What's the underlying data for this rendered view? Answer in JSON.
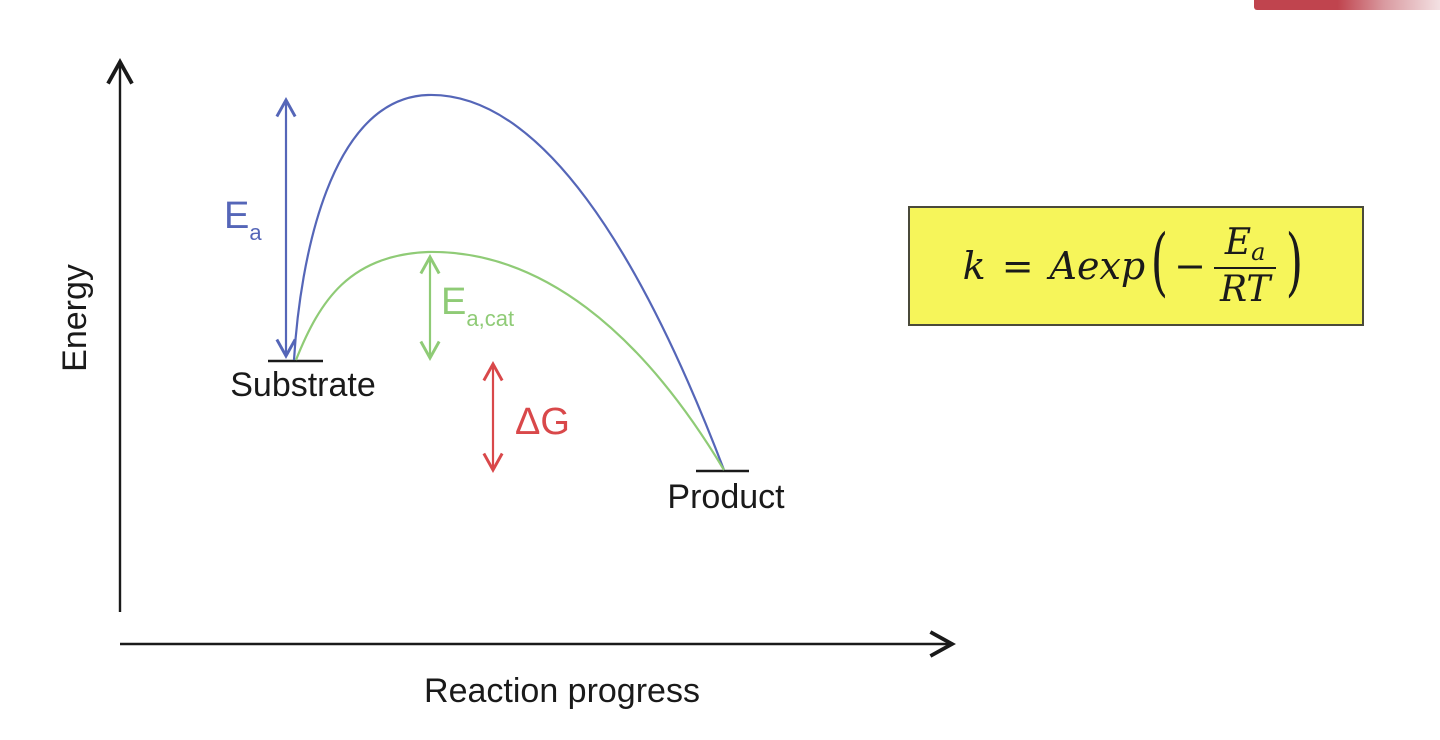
{
  "axes": {
    "y_label": "Energy",
    "x_label": "Reaction progress"
  },
  "states": {
    "substrate": "Substrate",
    "product": "Product"
  },
  "annotations": {
    "ea_main": "E",
    "ea_sub": "a",
    "ea_cat_main": "E",
    "ea_cat_sub": "a,cat",
    "delta_g": "ΔG"
  },
  "formula": {
    "lhs": "k",
    "equals": "=",
    "prefix": "Aexp",
    "minus": "−",
    "numerator_main": "E",
    "numerator_sub": "a",
    "denominator": "RT",
    "open_paren": "(",
    "close_paren": ")"
  },
  "colors": {
    "uncatalyzed_curve": "#5566b8",
    "catalyzed_curve": "#8fcb76",
    "delta_g_arrow": "#d9484a",
    "formula_background": "#f6f55a",
    "axes": "#1a1a1a"
  }
}
